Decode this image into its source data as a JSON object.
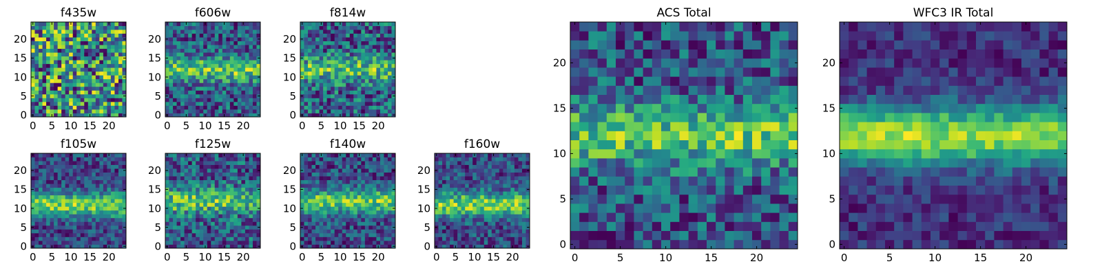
{
  "figure": {
    "colormap": "viridis"
  },
  "chart_data": [
    {
      "type": "heatmap",
      "title": "f435w",
      "grid_size": 25,
      "xticks": [
        0,
        5,
        10,
        15,
        20
      ],
      "yticks": [
        0,
        5,
        10,
        15,
        20
      ],
      "xlim": [
        -0.5,
        24.5
      ],
      "ylim": [
        -0.5,
        24.5
      ],
      "band_center": 11,
      "band_strength": 0.0,
      "noise": 0.95,
      "seed": 11
    },
    {
      "type": "heatmap",
      "title": "f606w",
      "grid_size": 25,
      "xticks": [
        0,
        5,
        10,
        15,
        20
      ],
      "yticks": [
        0,
        5,
        10,
        15,
        20
      ],
      "xlim": [
        -0.5,
        24.5
      ],
      "ylim": [
        -0.5,
        24.5
      ],
      "band_center": 12,
      "band_strength": 0.55,
      "noise": 0.7,
      "seed": 23
    },
    {
      "type": "heatmap",
      "title": "f814w",
      "grid_size": 25,
      "xticks": [
        0,
        5,
        10,
        15,
        20
      ],
      "yticks": [
        0,
        5,
        10,
        15,
        20
      ],
      "xlim": [
        -0.5,
        24.5
      ],
      "ylim": [
        -0.5,
        24.5
      ],
      "band_center": 12,
      "band_strength": 0.45,
      "noise": 0.8,
      "seed": 37
    },
    {
      "type": "heatmap",
      "title": "f105w",
      "grid_size": 25,
      "xticks": [
        0,
        5,
        10,
        15,
        20
      ],
      "yticks": [
        0,
        5,
        10,
        15,
        20
      ],
      "xlim": [
        -0.5,
        24.5
      ],
      "ylim": [
        -0.5,
        24.5
      ],
      "band_center": 11,
      "band_strength": 0.6,
      "noise": 0.45,
      "seed": 41
    },
    {
      "type": "heatmap",
      "title": "f125w",
      "grid_size": 25,
      "xticks": [
        0,
        5,
        10,
        15,
        20
      ],
      "yticks": [
        0,
        5,
        10,
        15,
        20
      ],
      "xlim": [
        -0.5,
        24.5
      ],
      "ylim": [
        -0.5,
        24.5
      ],
      "band_center": 12,
      "band_strength": 0.45,
      "noise": 0.6,
      "seed": 53
    },
    {
      "type": "heatmap",
      "title": "f140w",
      "grid_size": 25,
      "xticks": [
        0,
        5,
        10,
        15,
        20
      ],
      "yticks": [
        0,
        5,
        10,
        15,
        20
      ],
      "xlim": [
        -0.5,
        24.5
      ],
      "ylim": [
        -0.5,
        24.5
      ],
      "band_center": 12,
      "band_strength": 0.55,
      "noise": 0.5,
      "seed": 67
    },
    {
      "type": "heatmap",
      "title": "f160w",
      "grid_size": 25,
      "xticks": [
        0,
        5,
        10,
        15,
        20
      ],
      "yticks": [
        0,
        5,
        10,
        15,
        20
      ],
      "xlim": [
        -0.5,
        24.5
      ],
      "ylim": [
        -0.5,
        24.5
      ],
      "band_center": 11,
      "band_strength": 0.6,
      "noise": 0.5,
      "seed": 79
    },
    {
      "type": "heatmap",
      "title": "ACS Total",
      "grid_size": 25,
      "xticks": [
        0,
        5,
        10,
        15,
        20
      ],
      "yticks": [
        0,
        5,
        10,
        15,
        20
      ],
      "xlim": [
        -0.5,
        24.5
      ],
      "ylim": [
        -0.5,
        24.5
      ],
      "band_center": 12,
      "band_strength": 0.55,
      "noise": 0.65,
      "seed": 97
    },
    {
      "type": "heatmap",
      "title": "WFC3 IR Total",
      "grid_size": 25,
      "xticks": [
        0,
        5,
        10,
        15,
        20
      ],
      "yticks": [
        0,
        5,
        10,
        15,
        20
      ],
      "xlim": [
        -0.5,
        24.5
      ],
      "ylim": [
        -0.5,
        24.5
      ],
      "band_center": 12,
      "band_strength": 0.75,
      "noise": 0.3,
      "seed": 101
    }
  ]
}
